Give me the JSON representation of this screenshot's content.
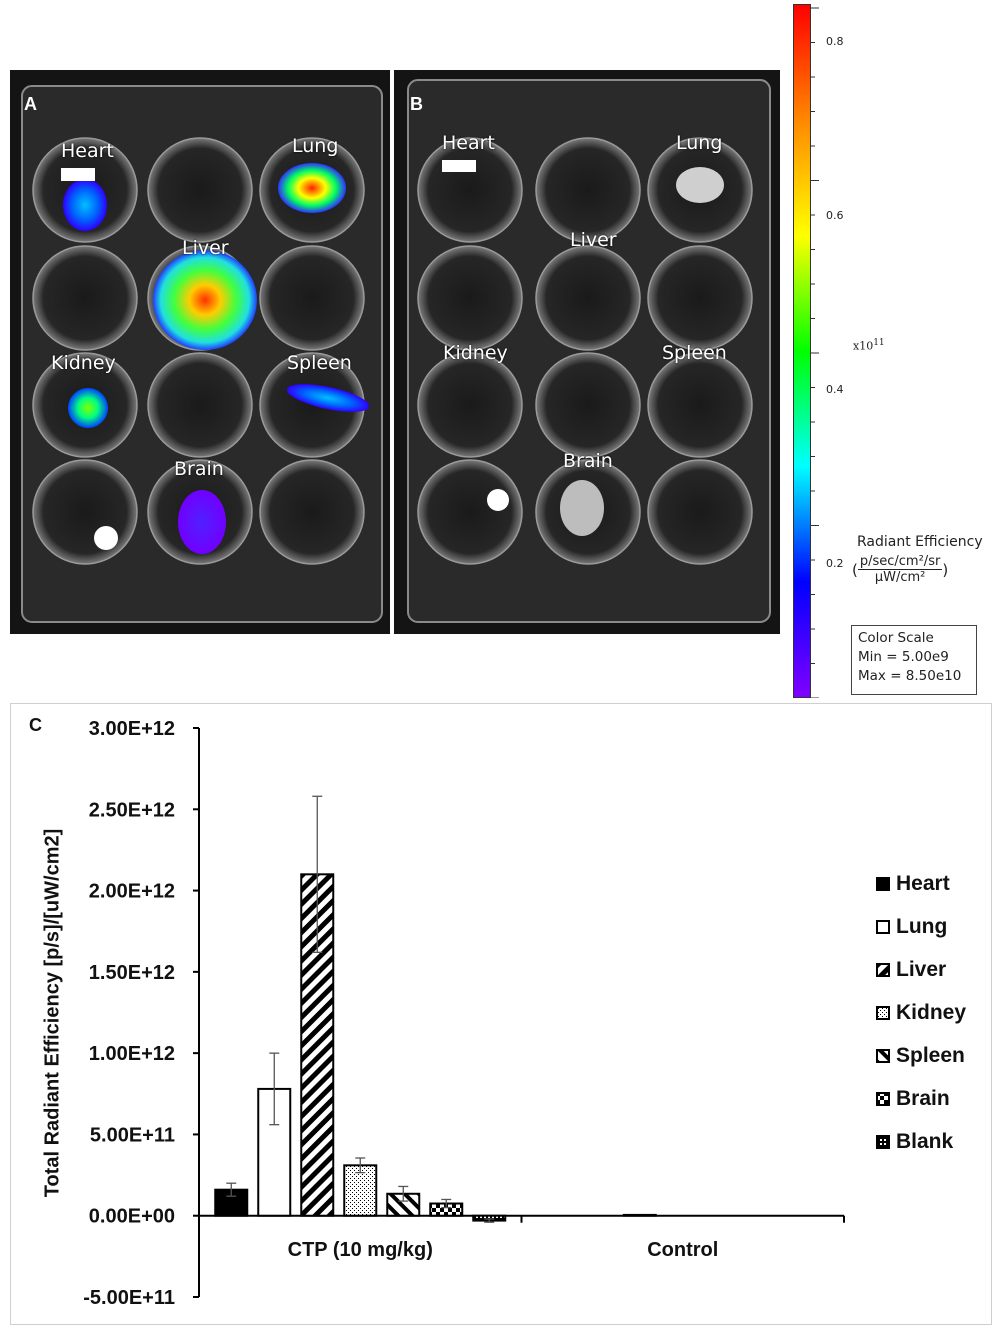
{
  "panels": {
    "a": {
      "letter": "A",
      "organs": [
        "Heart",
        "Lung",
        "Liver",
        "Kidney",
        "Spleen",
        "Brain"
      ]
    },
    "b": {
      "letter": "B",
      "organs": [
        "Heart",
        "Lung",
        "Liver",
        "Kidney",
        "Spleen",
        "Brain"
      ]
    }
  },
  "colorbar": {
    "ticks": [
      "0.8",
      "0.6",
      "0.4",
      "0.2"
    ],
    "multiplier": "x10",
    "exponent": "11",
    "title": "Radiant Efficiency",
    "unit_numerator": "p/sec/cm²/sr",
    "unit_denominator": "µW/cm²",
    "scale_box": {
      "title": "Color Scale",
      "min": "Min = 5.00e9",
      "max": "Max = 8.50e10"
    },
    "gradient_colors": [
      "#ff0000",
      "#ff8800",
      "#ffff00",
      "#00ff00",
      "#00ffff",
      "#0000ff",
      "#8000ff"
    ]
  },
  "chart_data": {
    "type": "bar",
    "panel_label": "C",
    "ylabel": "Total Radiant Efficiency [p/s]/[uW/cm2]",
    "ylim": [
      -500000000000.0,
      3000000000000.0
    ],
    "yticks": [
      "3.00E+12",
      "2.50E+12",
      "2.00E+12",
      "1.50E+12",
      "1.00E+12",
      "5.00E+11",
      "0.00E+00",
      "-5.00E+11"
    ],
    "categories": [
      "CTP (10 mg/kg)",
      "Control"
    ],
    "series": [
      {
        "name": "Heart",
        "pattern": "solid",
        "values": [
          160000000000.0,
          0
        ],
        "errors": [
          40000000000.0,
          0
        ]
      },
      {
        "name": "Lung",
        "pattern": "empty",
        "values": [
          780000000000.0,
          0
        ],
        "errors": [
          220000000000.0,
          0
        ]
      },
      {
        "name": "Liver",
        "pattern": "diag",
        "values": [
          2100000000000.0,
          5000000000.0
        ],
        "errors": [
          480000000000.0,
          0
        ]
      },
      {
        "name": "Kidney",
        "pattern": "dots",
        "values": [
          310000000000.0,
          0
        ],
        "errors": [
          45000000000.0,
          0
        ]
      },
      {
        "name": "Spleen",
        "pattern": "backdiag",
        "values": [
          135000000000.0,
          0
        ],
        "errors": [
          45000000000.0,
          0
        ]
      },
      {
        "name": "Brain",
        "pattern": "checker",
        "values": [
          75000000000.0,
          0
        ],
        "errors": [
          25000000000.0,
          0
        ]
      },
      {
        "name": "Blank",
        "pattern": "grid",
        "values": [
          -30000000000.0,
          0
        ],
        "errors": [
          10000000000.0,
          0
        ]
      }
    ]
  }
}
